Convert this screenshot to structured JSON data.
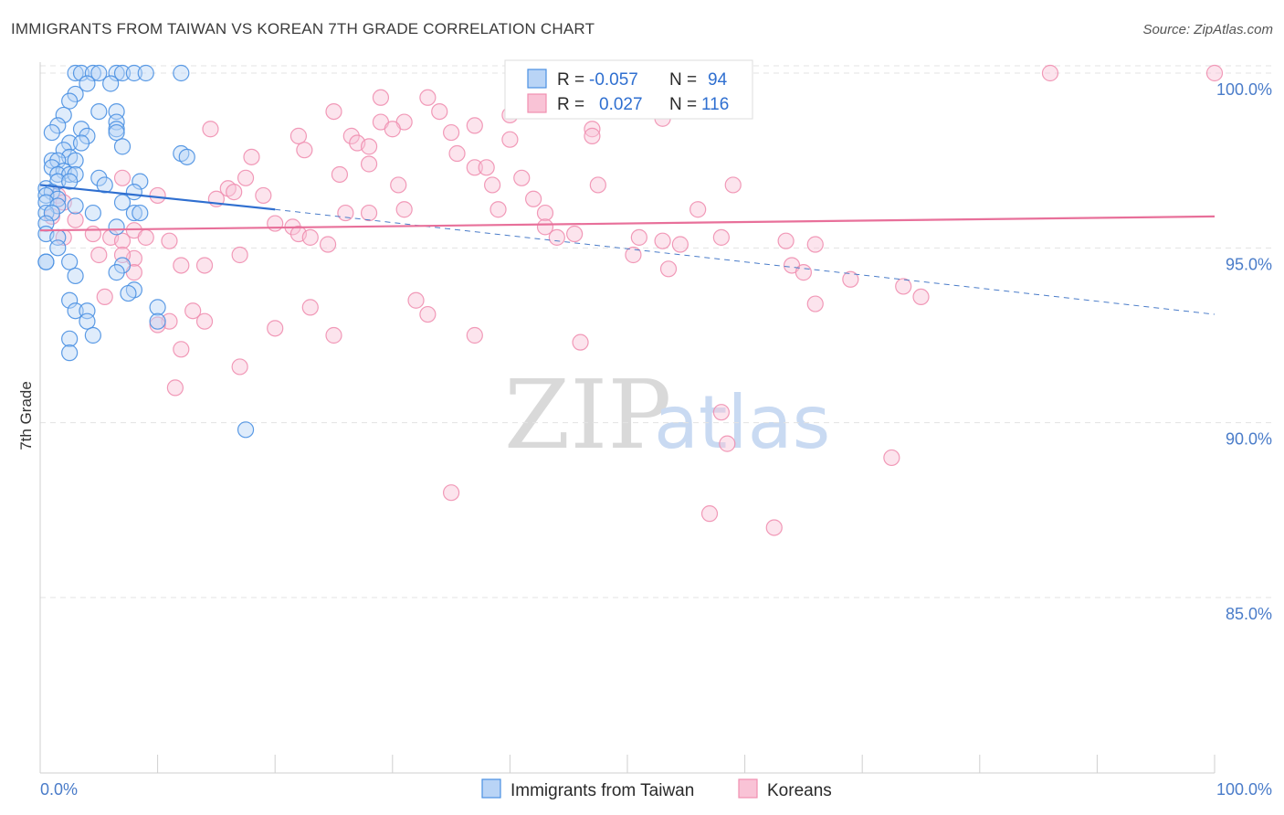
{
  "chart_data": {
    "type": "scatter",
    "title": "IMMIGRANTS FROM TAIWAN VS KOREAN 7TH GRADE CORRELATION CHART",
    "source": "Source: ZipAtlas.com",
    "xlabel": "",
    "ylabel": "7th Grade",
    "xlim": [
      0,
      100
    ],
    "ylim": [
      80.5,
      100.8
    ],
    "x_tick_labels": [
      "0.0%",
      "100.0%"
    ],
    "y_ticks": [
      {
        "value": 100,
        "label": "100.0%"
      },
      {
        "value": 95,
        "label": "95.0%"
      },
      {
        "value": 90,
        "label": "90.0%"
      },
      {
        "value": 85,
        "label": "85.0%"
      }
    ],
    "grid": true,
    "legend": {
      "position": "top-center",
      "rows": [
        {
          "r_label": "R =",
          "r_value": "-0.057",
          "n_label": "N =",
          "n_value": "94"
        },
        {
          "r_label": "R =",
          "r_value": "0.027",
          "n_label": "N =",
          "n_value": "116"
        }
      ]
    },
    "watermark": {
      "zip": "ZIP",
      "atlas": "atlas"
    },
    "series": [
      {
        "name": "Immigrants from Taiwan",
        "color": "#4a90e2",
        "trend": {
          "x0": 0,
          "y0": 96.8,
          "x1": 20,
          "y1": 96.1,
          "dash_x1": 100,
          "dash_y1": 93.1
        },
        "points": [
          [
            3,
            100
          ],
          [
            3.5,
            100
          ],
          [
            4.5,
            100
          ],
          [
            5,
            100
          ],
          [
            6.5,
            100
          ],
          [
            7,
            100
          ],
          [
            8,
            100
          ],
          [
            9,
            100
          ],
          [
            12,
            100
          ],
          [
            4,
            99.7
          ],
          [
            6,
            99.7
          ],
          [
            3,
            99.4
          ],
          [
            2.5,
            99.2
          ],
          [
            6.5,
            98.9
          ],
          [
            2,
            98.8
          ],
          [
            5,
            98.9
          ],
          [
            6.5,
            98.6
          ],
          [
            1.5,
            98.5
          ],
          [
            3.5,
            98.4
          ],
          [
            6.5,
            98.4
          ],
          [
            1,
            98.3
          ],
          [
            4,
            98.2
          ],
          [
            6.5,
            98.3
          ],
          [
            2.5,
            98
          ],
          [
            3.5,
            98
          ],
          [
            7,
            97.9
          ],
          [
            2,
            97.8
          ],
          [
            2.5,
            97.6
          ],
          [
            12,
            97.7
          ],
          [
            1,
            97.5
          ],
          [
            1.5,
            97.5
          ],
          [
            3,
            97.5
          ],
          [
            12.5,
            97.6
          ],
          [
            1,
            97.3
          ],
          [
            2,
            97.2
          ],
          [
            1.5,
            97.1
          ],
          [
            2.5,
            97.1
          ],
          [
            3,
            97.1
          ],
          [
            5,
            97
          ],
          [
            1.5,
            96.9
          ],
          [
            2.5,
            96.9
          ],
          [
            8.5,
            96.9
          ],
          [
            5.5,
            96.8
          ],
          [
            0.5,
            96.7
          ],
          [
            1,
            96.6
          ],
          [
            8,
            96.6
          ],
          [
            0.5,
            96.5
          ],
          [
            1.5,
            96.4
          ],
          [
            7,
            96.3
          ],
          [
            0.5,
            96.3
          ],
          [
            1.5,
            96.2
          ],
          [
            3,
            96.2
          ],
          [
            0.5,
            96
          ],
          [
            1,
            96
          ],
          [
            4.5,
            96
          ],
          [
            8,
            96
          ],
          [
            8.5,
            96
          ],
          [
            0.5,
            95.7
          ],
          [
            6.5,
            95.6
          ],
          [
            0.5,
            95.4
          ],
          [
            1.5,
            95.3
          ],
          [
            1.5,
            95
          ],
          [
            0.5,
            94.6
          ],
          [
            0.5,
            94.6
          ],
          [
            2.5,
            94.6
          ],
          [
            7,
            94.5
          ],
          [
            6.5,
            94.3
          ],
          [
            3,
            94.2
          ],
          [
            8,
            93.8
          ],
          [
            7.5,
            93.7
          ],
          [
            2.5,
            93.5
          ],
          [
            3,
            93.2
          ],
          [
            4,
            93.2
          ],
          [
            10,
            93.3
          ],
          [
            4,
            92.9
          ],
          [
            10,
            92.9
          ],
          [
            2.5,
            92.4
          ],
          [
            4.5,
            92.5
          ],
          [
            2.5,
            92
          ],
          [
            17.5,
            89.8
          ]
        ]
      },
      {
        "name": "Koreans",
        "color": "#f08fb0",
        "trend": {
          "x0": 0,
          "y0": 95.5,
          "x1": 100,
          "y1": 95.9
        },
        "points": [
          [
            41.5,
            100
          ],
          [
            86,
            100
          ],
          [
            100,
            100
          ],
          [
            29,
            99.3
          ],
          [
            33,
            99.3
          ],
          [
            25,
            98.9
          ],
          [
            34,
            98.9
          ],
          [
            40,
            98.8
          ],
          [
            53,
            98.7
          ],
          [
            29,
            98.6
          ],
          [
            31,
            98.6
          ],
          [
            30,
            98.4
          ],
          [
            37,
            98.5
          ],
          [
            47,
            98.4
          ],
          [
            14.5,
            98.4
          ],
          [
            22,
            98.2
          ],
          [
            26.5,
            98.2
          ],
          [
            35,
            98.3
          ],
          [
            47,
            98.2
          ],
          [
            40,
            98.1
          ],
          [
            27,
            98
          ],
          [
            28,
            97.9
          ],
          [
            22.5,
            97.8
          ],
          [
            35.5,
            97.7
          ],
          [
            18,
            97.6
          ],
          [
            28,
            97.4
          ],
          [
            37,
            97.3
          ],
          [
            38,
            97.3
          ],
          [
            25.5,
            97.1
          ],
          [
            17.5,
            97
          ],
          [
            41,
            97
          ],
          [
            30.5,
            96.8
          ],
          [
            38.5,
            96.8
          ],
          [
            47.5,
            96.8
          ],
          [
            59,
            96.8
          ],
          [
            7,
            97
          ],
          [
            16,
            96.7
          ],
          [
            19,
            96.5
          ],
          [
            15,
            96.4
          ],
          [
            16.5,
            96.6
          ],
          [
            10,
            96.5
          ],
          [
            26,
            96
          ],
          [
            28,
            96
          ],
          [
            31,
            96.1
          ],
          [
            39,
            96.1
          ],
          [
            42,
            96.4
          ],
          [
            43,
            96
          ],
          [
            56,
            96.1
          ],
          [
            1.5,
            96.5
          ],
          [
            2,
            96.3
          ],
          [
            1,
            95.9
          ],
          [
            3,
            95.8
          ],
          [
            8,
            95.5
          ],
          [
            20,
            95.7
          ],
          [
            21.5,
            95.6
          ],
          [
            22,
            95.4
          ],
          [
            23,
            95.3
          ],
          [
            24.5,
            95.1
          ],
          [
            43,
            95.6
          ],
          [
            44,
            95.3
          ],
          [
            45.5,
            95.4
          ],
          [
            51,
            95.3
          ],
          [
            53,
            95.2
          ],
          [
            54.5,
            95.1
          ],
          [
            58,
            95.3
          ],
          [
            63.5,
            95.2
          ],
          [
            66,
            95.1
          ],
          [
            4.5,
            95.4
          ],
          [
            6,
            95.3
          ],
          [
            7,
            95.2
          ],
          [
            9,
            95.3
          ],
          [
            11,
            95.2
          ],
          [
            2,
            95.3
          ],
          [
            17,
            94.8
          ],
          [
            5,
            94.8
          ],
          [
            8,
            94.7
          ],
          [
            50.5,
            94.8
          ],
          [
            53.5,
            94.4
          ],
          [
            64,
            94.5
          ],
          [
            65,
            94.3
          ],
          [
            69,
            94.1
          ],
          [
            73.5,
            93.9
          ],
          [
            75,
            93.6
          ],
          [
            66,
            93.4
          ],
          [
            32,
            93.5
          ],
          [
            33,
            93.1
          ],
          [
            23,
            93.3
          ],
          [
            13,
            93.2
          ],
          [
            11,
            92.9
          ],
          [
            10,
            92.8
          ],
          [
            14,
            92.9
          ],
          [
            20,
            92.7
          ],
          [
            25,
            92.5
          ],
          [
            37,
            92.5
          ],
          [
            46,
            92.3
          ],
          [
            12,
            92.1
          ],
          [
            17,
            91.6
          ],
          [
            11.5,
            91
          ],
          [
            5.5,
            93.6
          ],
          [
            8,
            94.3
          ],
          [
            12,
            94.5
          ],
          [
            14,
            94.5
          ],
          [
            7,
            94.8
          ],
          [
            58,
            90.3
          ],
          [
            58.5,
            89.4
          ],
          [
            72.5,
            89
          ],
          [
            35,
            88
          ],
          [
            57,
            87.4
          ],
          [
            62.5,
            87
          ]
        ]
      }
    ]
  },
  "bottom_legend": [
    {
      "label": "Immigrants from Taiwan"
    },
    {
      "label": "Koreans"
    }
  ]
}
